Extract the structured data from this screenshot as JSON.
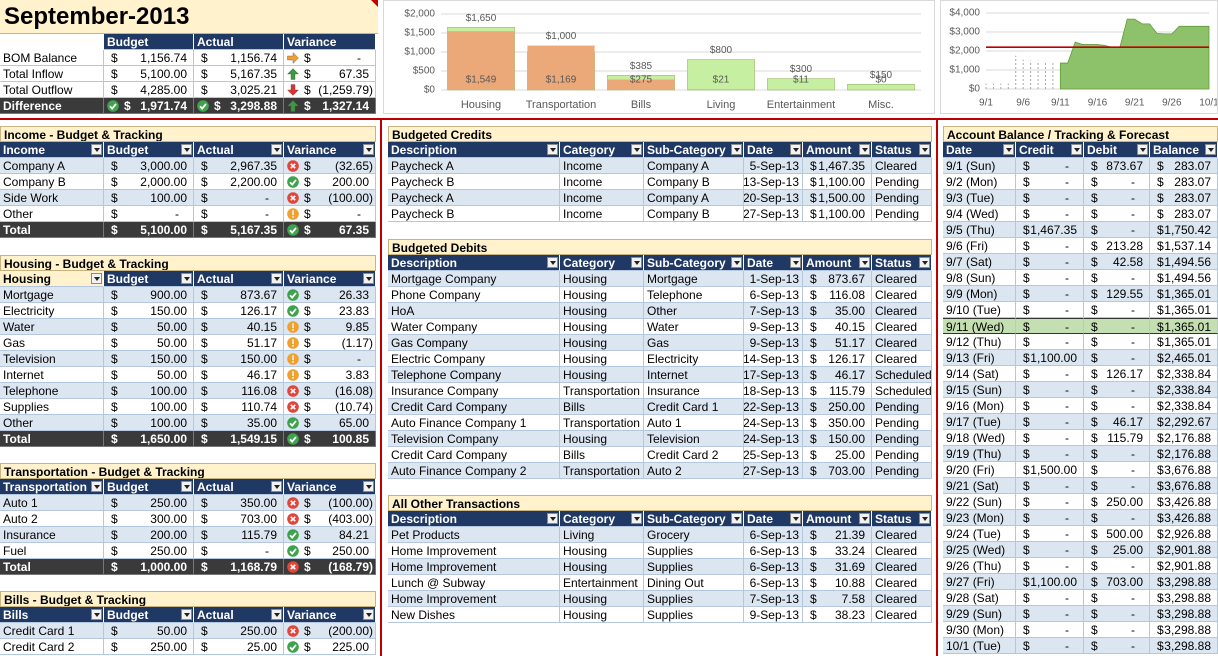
{
  "title": "September-2013",
  "currency": "$",
  "summary": {
    "columns": [
      "Budget",
      "Actual",
      "Variance"
    ],
    "rows": [
      [
        "BOM Balance",
        "1,156.74",
        "1,156.74",
        "-"
      ],
      [
        "Total Inflow",
        "5,100.00",
        "5,167.35",
        "67.35"
      ],
      [
        "Total Outflow",
        "4,285.00",
        "3,025.21",
        "(1,259.79)"
      ]
    ],
    "icons": [
      [
        null,
        null,
        null,
        "right"
      ],
      [
        null,
        null,
        null,
        "up"
      ],
      [
        null,
        null,
        null,
        "down"
      ]
    ],
    "total": [
      "Difference",
      "1,971.74",
      "3,298.88",
      "1,327.14"
    ],
    "total_icon": [
      null,
      "check",
      "check",
      "up"
    ]
  },
  "income": {
    "title": "Income - Budget & Tracking",
    "columns": [
      "Income",
      "Budget",
      "Actual",
      "Variance"
    ],
    "rows": [
      [
        "Company A",
        "3,000.00",
        "2,967.35",
        "(32.65)"
      ],
      [
        "Company B",
        "2,000.00",
        "2,200.00",
        "200.00"
      ],
      [
        "Side Work",
        "100.00",
        "-",
        "(100.00)"
      ],
      [
        "Other",
        "-",
        "-",
        "-"
      ]
    ],
    "icons": [
      "cross",
      "check",
      "cross",
      "warn"
    ],
    "total": [
      "Total",
      "5,100.00",
      "5,167.35",
      "67.35"
    ],
    "total_icon": "check"
  },
  "housing": {
    "title": "Housing - Budget & Tracking",
    "columns": [
      "Housing",
      "Budget",
      "Actual",
      "Variance"
    ],
    "rows": [
      [
        "Mortgage",
        "900.00",
        "873.67",
        "26.33"
      ],
      [
        "Electricity",
        "150.00",
        "126.17",
        "23.83"
      ],
      [
        "Water",
        "50.00",
        "40.15",
        "9.85"
      ],
      [
        "Gas",
        "50.00",
        "51.17",
        "(1.17)"
      ],
      [
        "Television",
        "150.00",
        "150.00",
        "-"
      ],
      [
        "Internet",
        "50.00",
        "46.17",
        "3.83"
      ],
      [
        "Telephone",
        "100.00",
        "116.08",
        "(16.08)"
      ],
      [
        "Supplies",
        "100.00",
        "110.74",
        "(10.74)"
      ],
      [
        "Other",
        "100.00",
        "35.00",
        "65.00"
      ]
    ],
    "icons": [
      "check",
      "check",
      "warn",
      "warn",
      "warn",
      "warn",
      "cross",
      "cross",
      "check"
    ],
    "total": [
      "Total",
      "1,650.00",
      "1,549.15",
      "100.85"
    ],
    "total_icon": "check"
  },
  "transportation": {
    "title": "Transportation - Budget & Tracking",
    "columns": [
      "Transportation",
      "Budget",
      "Actual",
      "Variance"
    ],
    "rows": [
      [
        "Auto 1",
        "250.00",
        "350.00",
        "(100.00)"
      ],
      [
        "Auto 2",
        "300.00",
        "703.00",
        "(403.00)"
      ],
      [
        "Insurance",
        "200.00",
        "115.79",
        "84.21"
      ],
      [
        "Fuel",
        "250.00",
        "-",
        "250.00"
      ]
    ],
    "icons": [
      "cross",
      "cross",
      "check",
      "check"
    ],
    "total": [
      "Total",
      "1,000.00",
      "1,168.79",
      "(168.79)"
    ],
    "total_icon": "cross"
  },
  "bills": {
    "title": "Bills - Budget & Tracking",
    "columns": [
      "Bills",
      "Budget",
      "Actual",
      "Variance"
    ],
    "rows": [
      [
        "Credit Card 1",
        "50.00",
        "250.00",
        "(200.00)"
      ],
      [
        "Credit Card 2",
        "250.00",
        "25.00",
        "225.00"
      ]
    ],
    "icons": [
      "cross",
      "check"
    ]
  },
  "credits": {
    "title": "Budgeted Credits",
    "columns": [
      "Description",
      "Category",
      "Sub-Category",
      "Date",
      "Amount",
      "Status"
    ],
    "rows": [
      [
        "Paycheck A",
        "Income",
        "Company A",
        "5-Sep-13",
        "1,467.35",
        "Cleared"
      ],
      [
        "Paycheck B",
        "Income",
        "Company B",
        "13-Sep-13",
        "1,100.00",
        "Pending"
      ],
      [
        "Paycheck A",
        "Income",
        "Company A",
        "20-Sep-13",
        "1,500.00",
        "Pending"
      ],
      [
        "Paycheck B",
        "Income",
        "Company B",
        "27-Sep-13",
        "1,100.00",
        "Pending"
      ]
    ]
  },
  "debits": {
    "title": "Budgeted Debits",
    "columns": [
      "Description",
      "Category",
      "Sub-Category",
      "Date",
      "Amount",
      "Status"
    ],
    "rows": [
      [
        "Mortgage Company",
        "Housing",
        "Mortgage",
        "1-Sep-13",
        "873.67",
        "Cleared"
      ],
      [
        "Phone Company",
        "Housing",
        "Telephone",
        "6-Sep-13",
        "116.08",
        "Cleared"
      ],
      [
        "HoA",
        "Housing",
        "Other",
        "7-Sep-13",
        "35.00",
        "Cleared"
      ],
      [
        "Water Company",
        "Housing",
        "Water",
        "9-Sep-13",
        "40.15",
        "Cleared"
      ],
      [
        "Gas Company",
        "Housing",
        "Gas",
        "9-Sep-13",
        "51.17",
        "Cleared"
      ],
      [
        "Electric Company",
        "Housing",
        "Electricity",
        "14-Sep-13",
        "126.17",
        "Cleared"
      ],
      [
        "Telephone Company",
        "Housing",
        "Internet",
        "17-Sep-13",
        "46.17",
        "Scheduled"
      ],
      [
        "Insurance Company",
        "Transportation",
        "Insurance",
        "18-Sep-13",
        "115.79",
        "Scheduled"
      ],
      [
        "Credit Card Company",
        "Bills",
        "Credit Card 1",
        "22-Sep-13",
        "250.00",
        "Pending"
      ],
      [
        "Auto Finance Company 1",
        "Transportation",
        "Auto 1",
        "24-Sep-13",
        "350.00",
        "Pending"
      ],
      [
        "Television Company",
        "Housing",
        "Television",
        "24-Sep-13",
        "150.00",
        "Pending"
      ],
      [
        "Credit Card Company",
        "Bills",
        "Credit Card 2",
        "25-Sep-13",
        "25.00",
        "Pending"
      ],
      [
        "Auto Finance Company 2",
        "Transportation",
        "Auto 2",
        "27-Sep-13",
        "703.00",
        "Pending"
      ]
    ]
  },
  "other": {
    "title": "All Other Transactions",
    "columns": [
      "Description",
      "Category",
      "Sub-Category",
      "Date",
      "Amount",
      "Status"
    ],
    "rows": [
      [
        "Pet Products",
        "Living",
        "Grocery",
        "6-Sep-13",
        "21.39",
        "Cleared"
      ],
      [
        "Home Improvement",
        "Housing",
        "Supplies",
        "6-Sep-13",
        "33.24",
        "Cleared"
      ],
      [
        "Home Improvement",
        "Housing",
        "Supplies",
        "6-Sep-13",
        "31.69",
        "Cleared"
      ],
      [
        "Lunch @ Subway",
        "Entertainment",
        "Dining Out",
        "6-Sep-13",
        "10.88",
        "Cleared"
      ],
      [
        "Home Improvement",
        "Housing",
        "Supplies",
        "7-Sep-13",
        "7.58",
        "Cleared"
      ],
      [
        "New Dishes",
        "Housing",
        "Supplies",
        "9-Sep-13",
        "38.23",
        "Cleared"
      ]
    ]
  },
  "balance": {
    "title": "Account Balance / Tracking & Forecast",
    "columns": [
      "Date",
      "Credit",
      "Debit",
      "Balance"
    ],
    "rows": [
      [
        "9/1 (Sun)",
        "-",
        "873.67",
        "283.07"
      ],
      [
        "9/2 (Mon)",
        "-",
        "-",
        "283.07"
      ],
      [
        "9/3 (Tue)",
        "-",
        "-",
        "283.07"
      ],
      [
        "9/4 (Wed)",
        "-",
        "-",
        "283.07"
      ],
      [
        "9/5 (Thu)",
        "1,467.35",
        "-",
        "1,750.42"
      ],
      [
        "9/6 (Fri)",
        "-",
        "213.28",
        "1,537.14"
      ],
      [
        "9/7 (Sat)",
        "-",
        "42.58",
        "1,494.56"
      ],
      [
        "9/8 (Sun)",
        "-",
        "-",
        "1,494.56"
      ],
      [
        "9/9 (Mon)",
        "-",
        "129.55",
        "1,365.01"
      ],
      [
        "9/10 (Tue)",
        "-",
        "-",
        "1,365.01"
      ],
      [
        "9/11 (Wed)",
        "-",
        "-",
        "1,365.01"
      ],
      [
        "9/12 (Thu)",
        "-",
        "-",
        "1,365.01"
      ],
      [
        "9/13 (Fri)",
        "1,100.00",
        "-",
        "2,465.01"
      ],
      [
        "9/14 (Sat)",
        "-",
        "126.17",
        "2,338.84"
      ],
      [
        "9/15 (Sun)",
        "-",
        "-",
        "2,338.84"
      ],
      [
        "9/16 (Mon)",
        "-",
        "-",
        "2,338.84"
      ],
      [
        "9/17 (Tue)",
        "-",
        "46.17",
        "2,292.67"
      ],
      [
        "9/18 (Wed)",
        "-",
        "115.79",
        "2,176.88"
      ],
      [
        "9/19 (Thu)",
        "-",
        "-",
        "2,176.88"
      ],
      [
        "9/20 (Fri)",
        "1,500.00",
        "-",
        "3,676.88"
      ],
      [
        "9/21 (Sat)",
        "-",
        "-",
        "3,676.88"
      ],
      [
        "9/22 (Sun)",
        "-",
        "250.00",
        "3,426.88"
      ],
      [
        "9/23 (Mon)",
        "-",
        "-",
        "3,426.88"
      ],
      [
        "9/24 (Tue)",
        "-",
        "500.00",
        "2,926.88"
      ],
      [
        "9/25 (Wed)",
        "-",
        "25.00",
        "2,901.88"
      ],
      [
        "9/26 (Thu)",
        "-",
        "-",
        "2,901.88"
      ],
      [
        "9/27 (Fri)",
        "1,100.00",
        "703.00",
        "3,298.88"
      ],
      [
        "9/28 (Sat)",
        "-",
        "-",
        "3,298.88"
      ],
      [
        "9/29 (Sun)",
        "-",
        "-",
        "3,298.88"
      ],
      [
        "9/30 (Mon)",
        "-",
        "-",
        "3,298.88"
      ],
      [
        "10/1 (Tue)",
        "-",
        "-",
        "3,298.88"
      ]
    ],
    "selected_row": 10
  },
  "chart_data": [
    {
      "type": "bar",
      "categories": [
        "Housing",
        "Transportation",
        "Bills",
        "Living",
        "Entertainment",
        "Misc."
      ],
      "series": [
        {
          "values": [
            1650,
            1000,
            385,
            800,
            300,
            150
          ],
          "value_labels": [
            "$1,650",
            "$1,000",
            "$385",
            "$800",
            "$300",
            "$150"
          ],
          "colors": [
            "#c6efa1",
            "#f4a3a3",
            "#c6efa1",
            "#c6efa1",
            "#c6efa1",
            "#c6efa1"
          ]
        },
        {
          "values": [
            1549,
            1169,
            275,
            21,
            11,
            0
          ],
          "value_labels": [
            "$1,549",
            "$1,169",
            "$275",
            "$21",
            "$11",
            "$0"
          ],
          "color": "#eba878"
        }
      ],
      "ylim": [
        0,
        2000
      ],
      "yticks": [
        {
          "value": 0,
          "label": "$0"
        },
        {
          "value": 500,
          "label": "$500"
        },
        {
          "value": 1000,
          "label": "$1,000"
        },
        {
          "value": 1500,
          "label": "$1,500"
        },
        {
          "value": 2000,
          "label": "$2,000"
        }
      ],
      "grid": true
    },
    {
      "type": "area",
      "categories": [
        "9/1",
        null,
        null,
        null,
        null,
        "9/6",
        null,
        null,
        null,
        null,
        "9/11",
        null,
        null,
        null,
        null,
        "9/16",
        null,
        null,
        null,
        null,
        "9/21",
        null,
        null,
        null,
        null,
        "9/26",
        null,
        null,
        null,
        null,
        "10/1"
      ],
      "values": [
        283.07,
        283.07,
        283.07,
        283.07,
        1750.42,
        1537.14,
        1494.56,
        1494.56,
        1365.01,
        1365.01,
        1365.01,
        1365.01,
        2465.01,
        2338.84,
        2338.84,
        2338.84,
        2292.67,
        2176.88,
        2176.88,
        3676.88,
        3676.88,
        3426.88,
        3426.88,
        2926.88,
        2901.88,
        2901.88,
        3298.88,
        3298.88,
        3298.88,
        3298.88,
        3298.88
      ],
      "color": "#8dc16a",
      "forecast_start": 10,
      "reference_line": {
        "value": 2200,
        "color": "#c00000"
      },
      "ylim": [
        0,
        4000
      ],
      "yticks": [
        {
          "value": 0,
          "label": "$0"
        },
        {
          "value": 1000,
          "label": "$1,000"
        },
        {
          "value": 2000,
          "label": "$2,000"
        },
        {
          "value": 3000,
          "label": "$3,000"
        },
        {
          "value": 4000,
          "label": "$4,000"
        }
      ],
      "grid": true
    }
  ]
}
